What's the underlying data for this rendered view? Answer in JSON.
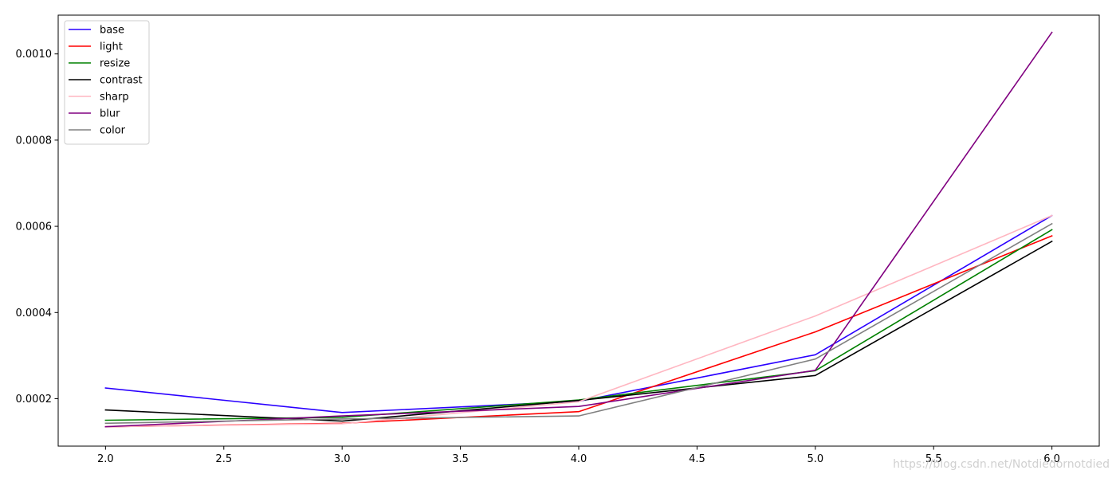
{
  "chart_data": {
    "type": "line",
    "title": "",
    "xlabel": "",
    "ylabel": "",
    "x": [
      2.0,
      3.0,
      4.0,
      5.0,
      6.0
    ],
    "xlim": [
      1.8,
      6.2
    ],
    "ylim": [
      9e-05,
      0.00109
    ],
    "x_ticks": [
      "2.0",
      "2.5",
      "3.0",
      "3.5",
      "4.0",
      "4.5",
      "5.0",
      "5.5",
      "6.0"
    ],
    "y_ticks": [
      "0.0002",
      "0.0004",
      "0.0006",
      "0.0008",
      "0.0010"
    ],
    "grid": false,
    "legend_position": "upper-left",
    "series": [
      {
        "name": "base",
        "color": "#2a00ff",
        "values": [
          0.000225,
          0.000168,
          0.000194,
          0.000302,
          0.000625
        ]
      },
      {
        "name": "light",
        "color": "#ff0000",
        "values": [
          0.000135,
          0.000143,
          0.00017,
          0.000355,
          0.000578
        ]
      },
      {
        "name": "resize",
        "color": "#008000",
        "values": [
          0.00015,
          0.000157,
          0.000197,
          0.000265,
          0.000592
        ]
      },
      {
        "name": "contrast",
        "color": "#000000",
        "values": [
          0.000174,
          0.000148,
          0.000196,
          0.000254,
          0.000565
        ]
      },
      {
        "name": "sharp",
        "color": "#ffb6c1",
        "values": [
          0.000135,
          0.000142,
          0.000193,
          0.000392,
          0.000625
        ]
      },
      {
        "name": "blur",
        "color": "#800080",
        "values": [
          0.000135,
          0.00016,
          0.000182,
          0.000266,
          0.00105
        ]
      },
      {
        "name": "color",
        "color": "#808080",
        "values": [
          0.000143,
          0.000153,
          0.00016,
          0.000292,
          0.000606
        ]
      }
    ]
  },
  "watermark": "https://blog.csdn.net/Notdiedornotdied"
}
